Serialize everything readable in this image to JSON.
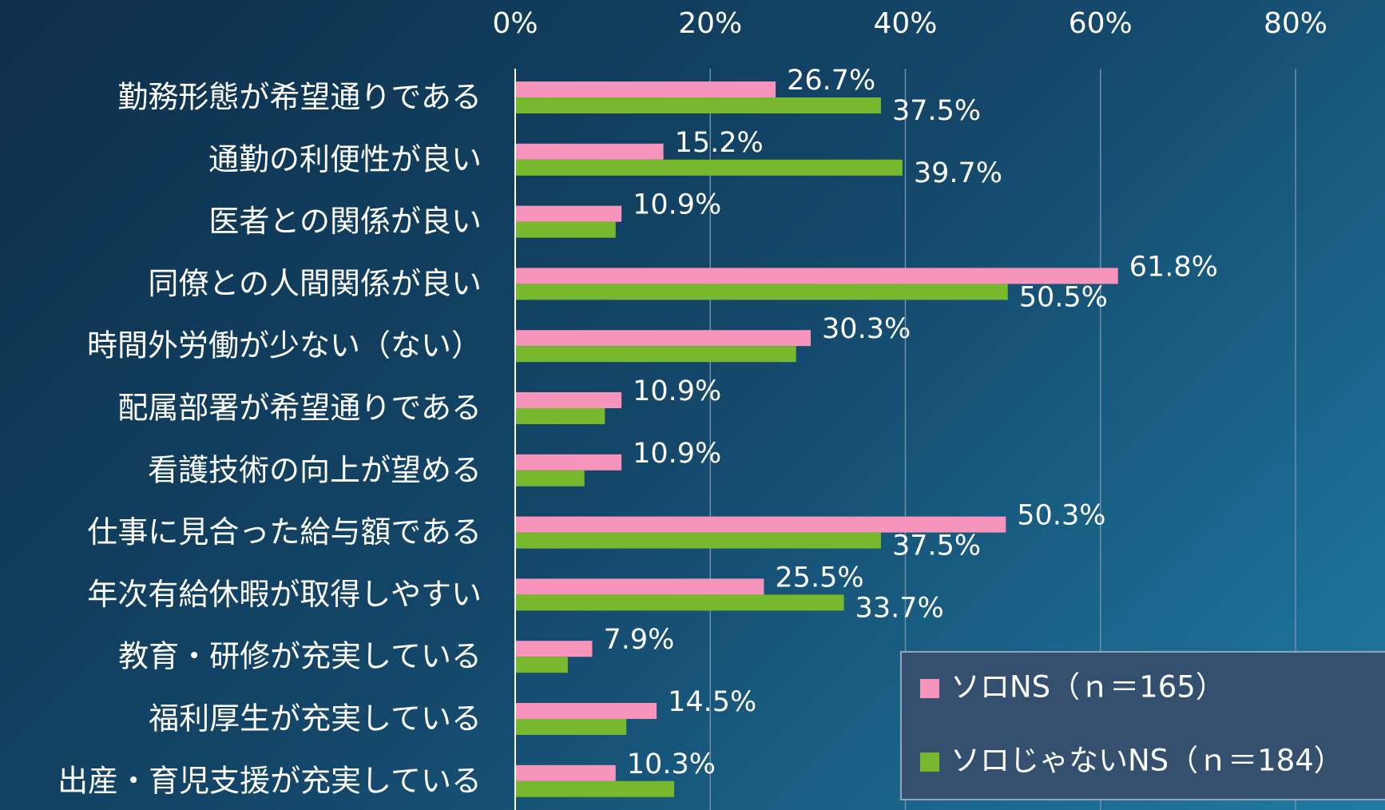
{
  "chart_data": {
    "type": "barh",
    "categories": [
      "勤務形態が希望通りである",
      "通勤の利便性が良い",
      "医者との関係が良い",
      "同僚との人間関係が良い",
      "時間外労働が少ない（ない）",
      "配属部署が希望通りである",
      "看護技術の向上が望める",
      "仕事に見合った給与額である",
      "年次有給休暇が取得しやすい",
      "教育・研修が充実している",
      "福利厚生が充実している",
      "出産・育児支援が充実している"
    ],
    "series": [
      {
        "name": "ソロNS（ｎ＝165）",
        "color": "#f794bc",
        "values": [
          26.7,
          15.2,
          10.9,
          61.8,
          30.3,
          10.9,
          10.9,
          50.3,
          25.5,
          7.9,
          14.5,
          10.3
        ],
        "value_labels": [
          "26.7%",
          "15.2%",
          "10.9%",
          "61.8%",
          "30.3%",
          "10.9%",
          "10.9%",
          "50.3%",
          "25.5%",
          "7.9%",
          "14.5%",
          "10.3%"
        ]
      },
      {
        "name": "ソロじゃないNS（ｎ＝184）",
        "color": "#78b82e",
        "values": [
          37.5,
          39.7,
          10.3,
          50.5,
          28.8,
          9.2,
          7.1,
          37.5,
          33.7,
          5.4,
          11.4,
          16.3
        ],
        "value_labels": [
          "37.5%",
          "39.7%",
          null,
          "50.5%",
          null,
          null,
          null,
          "37.5%",
          "33.7%",
          null,
          null,
          null
        ]
      }
    ],
    "xlim": [
      0,
      80
    ],
    "xticks": [
      {
        "value": 0,
        "label": "0%"
      },
      {
        "value": 20,
        "label": "20%"
      },
      {
        "value": 40,
        "label": "40%"
      },
      {
        "value": 60,
        "label": "60%"
      },
      {
        "value": 80,
        "label": "80%"
      }
    ],
    "grid": true,
    "legend": "lower right"
  }
}
